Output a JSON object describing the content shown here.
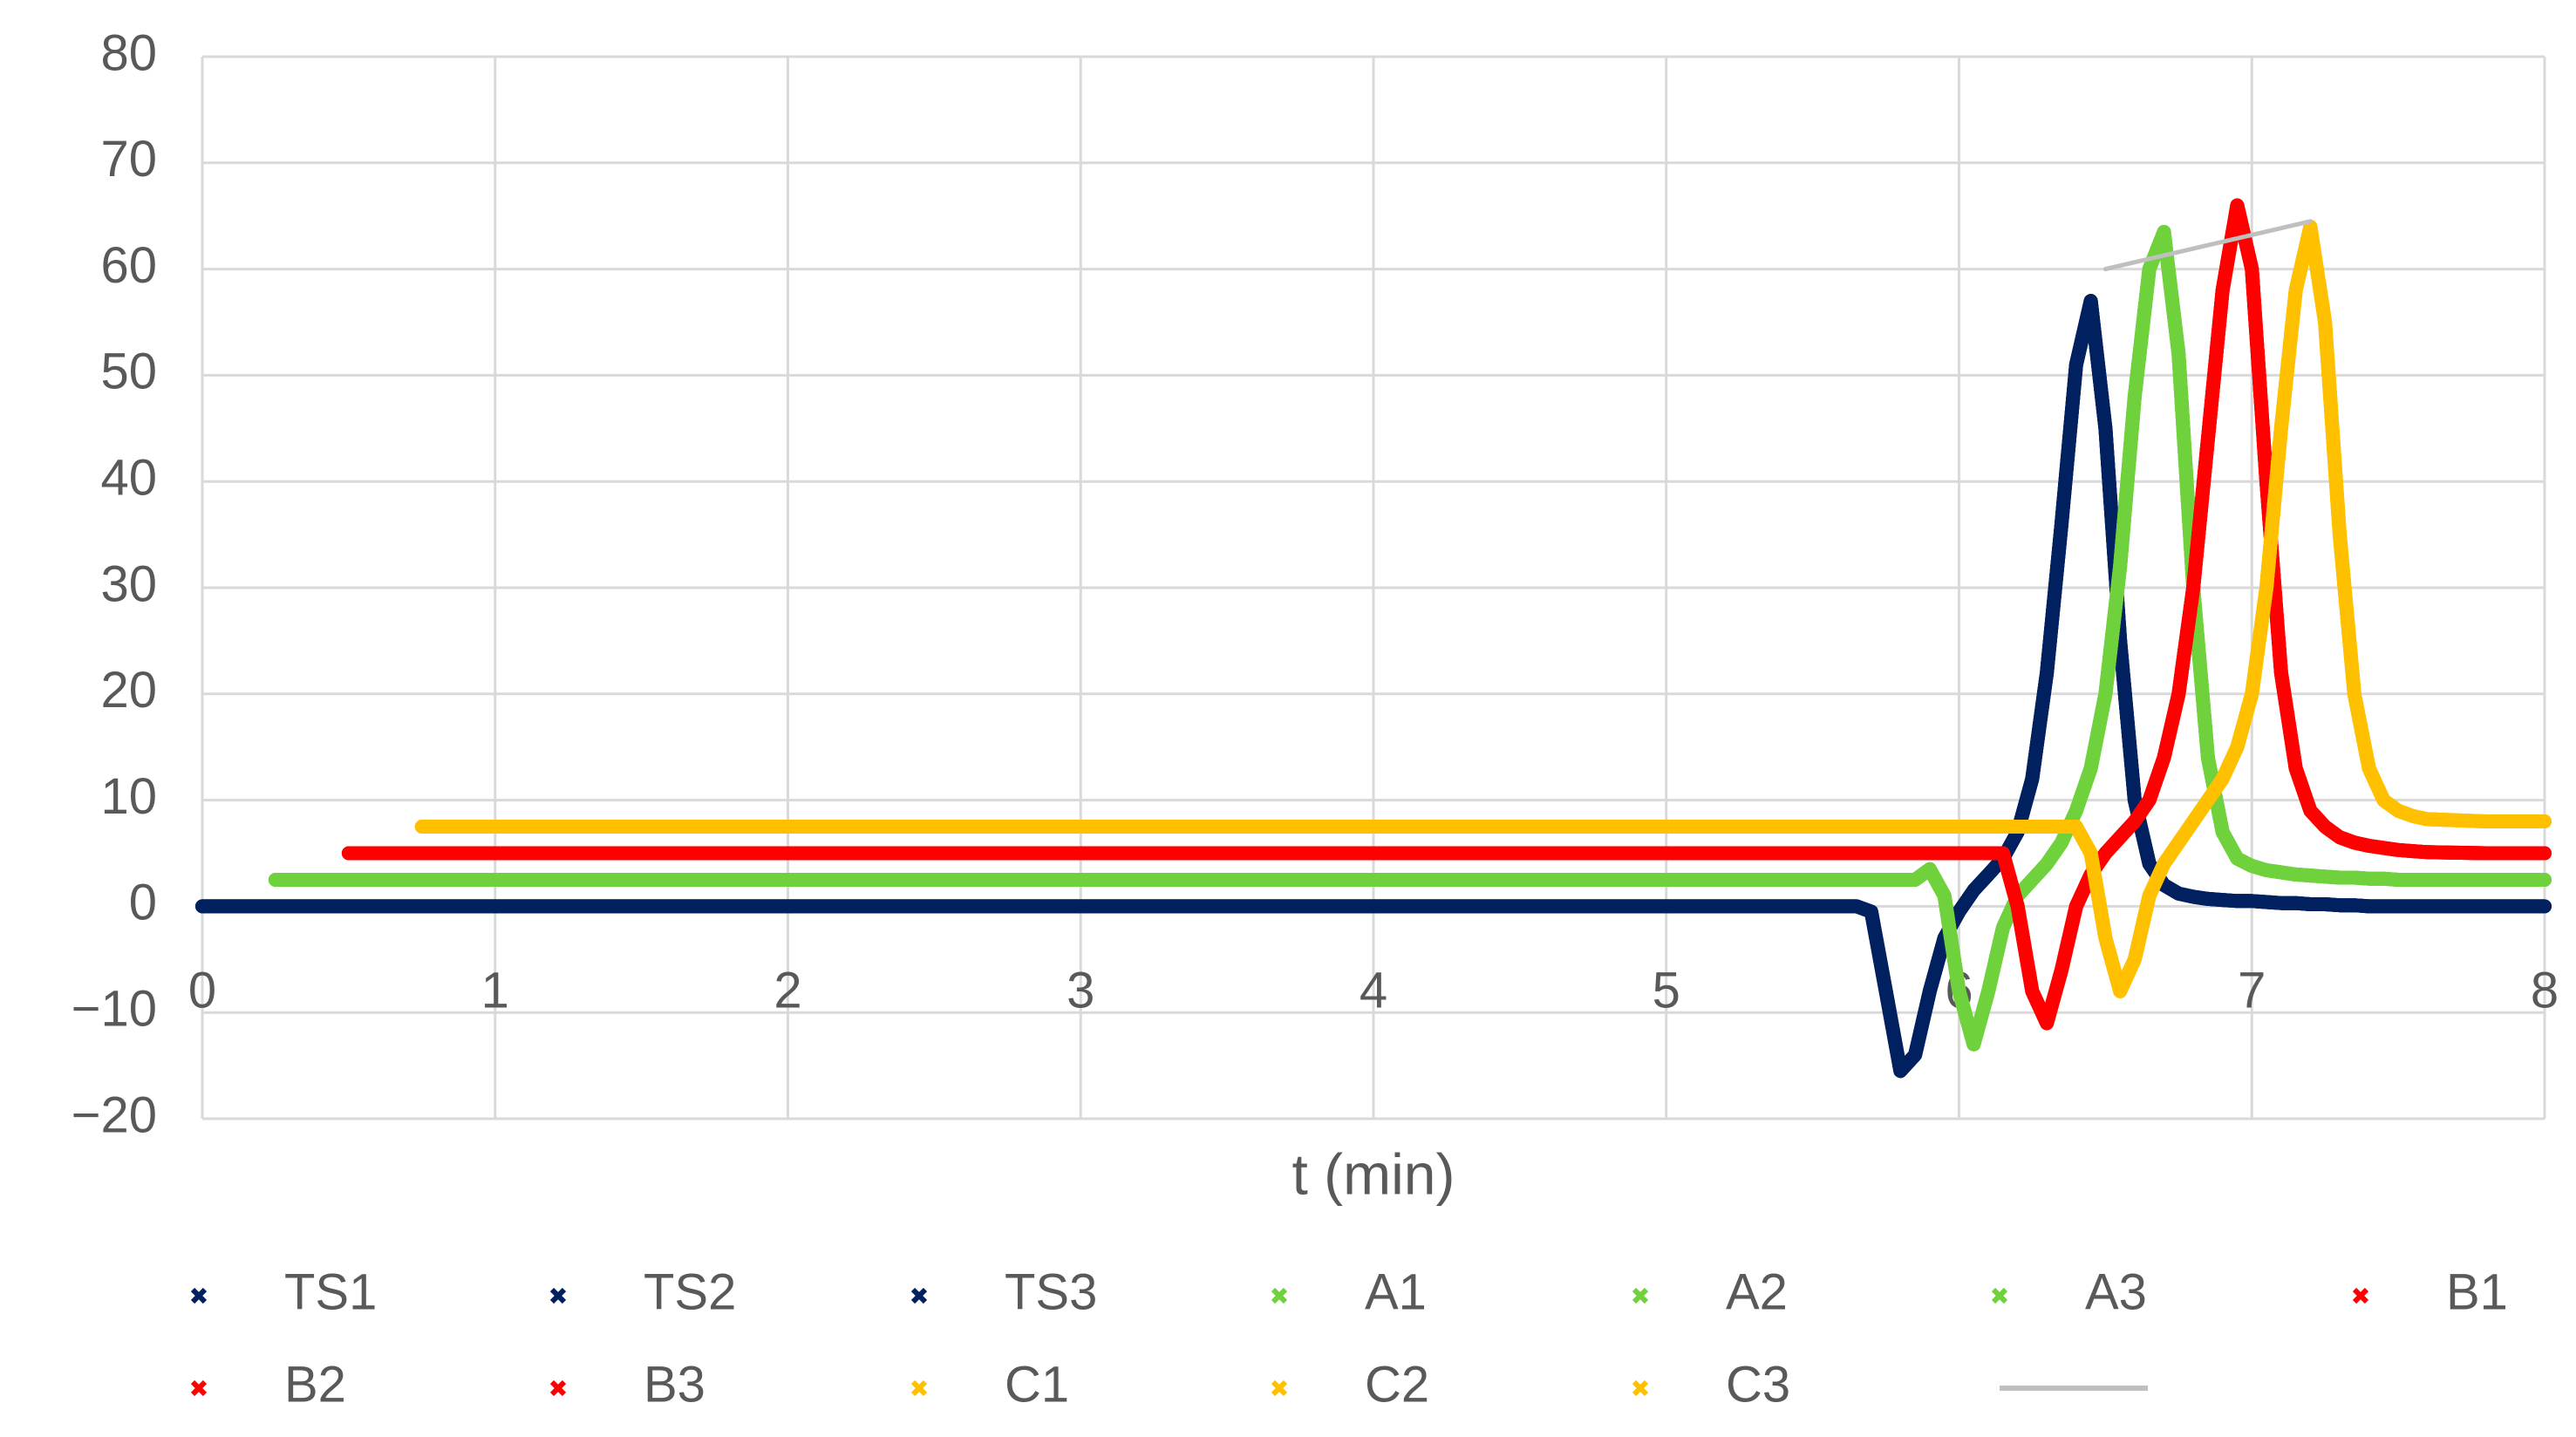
{
  "chart_data": {
    "type": "line",
    "xlabel": "t (min)",
    "x": [
      0,
      0.25,
      0.5,
      0.75,
      1,
      1.5,
      2,
      2.5,
      3,
      3.5,
      4,
      4.5,
      5,
      5.5,
      5.6,
      5.65,
      5.7,
      5.75,
      5.8,
      5.85,
      5.9,
      5.95,
      6,
      6.05,
      6.1,
      6.15,
      6.2,
      6.25,
      6.3,
      6.35,
      6.4,
      6.45,
      6.5,
      6.55,
      6.6,
      6.65,
      6.7,
      6.75,
      6.8,
      6.85,
      6.9,
      6.95,
      7,
      7.05,
      7.1,
      7.15,
      7.2,
      7.25,
      7.3,
      7.35,
      7.4,
      7.45,
      7.5,
      7.55,
      7.6,
      7.8,
      8
    ],
    "xlim": [
      0,
      8
    ],
    "xticks": [
      0,
      1,
      2,
      3,
      4,
      5,
      6,
      7,
      8
    ],
    "ylim": [
      -20,
      80
    ],
    "yticks": [
      {
        "value": -20,
        "label": "−20"
      },
      {
        "value": -10,
        "label": "−10"
      },
      0,
      10,
      20,
      30,
      40,
      50,
      60,
      70,
      80
    ],
    "grid": true,
    "legend": "bottom",
    "series": [
      {
        "name": "TS1",
        "color": "#002060",
        "values": [
          0,
          0,
          0,
          0,
          0,
          0,
          0,
          0,
          0,
          0,
          0,
          0,
          0,
          0,
          0,
          0,
          -0.5,
          -8,
          -15.5,
          -14,
          -8,
          -3,
          -0.5,
          1.5,
          3,
          4.5,
          7,
          12,
          22,
          36,
          51,
          57,
          45,
          25,
          10,
          4,
          2,
          1.2,
          0.9,
          0.7,
          0.6,
          0.5,
          0.5,
          0.4,
          0.3,
          0.3,
          0.2,
          0.2,
          0.1,
          0.1,
          0,
          0,
          0,
          0,
          0,
          0,
          0
        ]
      },
      {
        "name": "TS2",
        "color": "#002060",
        "values": [
          0,
          0,
          0,
          0,
          0,
          0,
          0,
          0,
          0,
          0,
          0,
          0,
          0,
          0,
          0,
          0,
          -0.5,
          -8,
          -15.5,
          -14,
          -8,
          -3,
          -0.5,
          1.5,
          3,
          4.5,
          7,
          12,
          22,
          36,
          51,
          57,
          45,
          25,
          10,
          4,
          2,
          1.2,
          0.9,
          0.7,
          0.6,
          0.5,
          0.5,
          0.4,
          0.3,
          0.3,
          0.2,
          0.2,
          0.1,
          0.1,
          0,
          0,
          0,
          0,
          0,
          0,
          0
        ]
      },
      {
        "name": "TS3",
        "color": "#002060",
        "values": [
          0,
          0,
          0,
          0,
          0,
          0,
          0,
          0,
          0,
          0,
          0,
          0,
          0,
          0,
          0,
          0,
          -0.5,
          -8,
          -15.5,
          -14,
          -8,
          -3,
          -0.5,
          1.5,
          3,
          4.5,
          7,
          12,
          22,
          36,
          51,
          57,
          45,
          25,
          10,
          4,
          2,
          1.2,
          0.9,
          0.7,
          0.6,
          0.5,
          0.5,
          0.4,
          0.3,
          0.3,
          0.2,
          0.2,
          0.1,
          0.1,
          0,
          0,
          0,
          0,
          0,
          0,
          0
        ]
      },
      {
        "name": "A1",
        "color": "#6fd13c",
        "values": [
          null,
          2.5,
          2.5,
          2.5,
          2.5,
          2.5,
          2.5,
          2.5,
          2.5,
          2.5,
          2.5,
          2.5,
          2.5,
          2.5,
          2.5,
          2.5,
          2.5,
          2.5,
          2.5,
          2.5,
          3.5,
          1,
          -8,
          -13,
          -8,
          -2,
          1,
          2.5,
          4,
          6,
          9,
          13,
          20,
          32,
          48,
          60,
          63.5,
          52,
          30,
          14,
          7,
          4.5,
          3.8,
          3.4,
          3.2,
          3,
          2.9,
          2.8,
          2.7,
          2.7,
          2.6,
          2.6,
          2.5,
          2.5,
          2.5,
          2.5,
          2.5
        ]
      },
      {
        "name": "A2",
        "color": "#6fd13c",
        "values": [
          null,
          2.5,
          2.5,
          2.5,
          2.5,
          2.5,
          2.5,
          2.5,
          2.5,
          2.5,
          2.5,
          2.5,
          2.5,
          2.5,
          2.5,
          2.5,
          2.5,
          2.5,
          2.5,
          2.5,
          3.5,
          1,
          -8,
          -13,
          -8,
          -2,
          1,
          2.5,
          4,
          6,
          9,
          13,
          20,
          32,
          48,
          60,
          63.5,
          52,
          30,
          14,
          7,
          4.5,
          3.8,
          3.4,
          3.2,
          3,
          2.9,
          2.8,
          2.7,
          2.7,
          2.6,
          2.6,
          2.5,
          2.5,
          2.5,
          2.5,
          2.5
        ]
      },
      {
        "name": "A3",
        "color": "#6fd13c",
        "values": [
          null,
          2.5,
          2.5,
          2.5,
          2.5,
          2.5,
          2.5,
          2.5,
          2.5,
          2.5,
          2.5,
          2.5,
          2.5,
          2.5,
          2.5,
          2.5,
          2.5,
          2.5,
          2.5,
          2.5,
          3.5,
          1,
          -8,
          -13,
          -8,
          -2,
          1,
          2.5,
          4,
          6,
          9,
          13,
          20,
          32,
          48,
          60,
          63.5,
          52,
          30,
          14,
          7,
          4.5,
          3.8,
          3.4,
          3.2,
          3,
          2.9,
          2.8,
          2.7,
          2.7,
          2.6,
          2.6,
          2.5,
          2.5,
          2.5,
          2.5,
          2.5
        ]
      },
      {
        "name": "B1",
        "color": "#ff0000",
        "values": [
          null,
          null,
          5,
          5,
          5,
          5,
          5,
          5,
          5,
          5,
          5,
          5,
          5,
          5,
          5,
          5,
          5,
          5,
          5,
          5,
          5,
          5,
          5,
          5,
          5,
          5,
          0,
          -8,
          -11,
          -6,
          0,
          3,
          5,
          6.5,
          8,
          10,
          14,
          20,
          30,
          44,
          58,
          66,
          60,
          40,
          22,
          13,
          9,
          7.5,
          6.5,
          6,
          5.7,
          5.5,
          5.3,
          5.2,
          5.1,
          5,
          5
        ]
      },
      {
        "name": "B2",
        "color": "#ff0000",
        "values": [
          null,
          null,
          5,
          5,
          5,
          5,
          5,
          5,
          5,
          5,
          5,
          5,
          5,
          5,
          5,
          5,
          5,
          5,
          5,
          5,
          5,
          5,
          5,
          5,
          5,
          5,
          0,
          -8,
          -11,
          -6,
          0,
          3,
          5,
          6.5,
          8,
          10,
          14,
          20,
          30,
          44,
          58,
          66,
          60,
          40,
          22,
          13,
          9,
          7.5,
          6.5,
          6,
          5.7,
          5.5,
          5.3,
          5.2,
          5.1,
          5,
          5
        ]
      },
      {
        "name": "B3",
        "color": "#ff0000",
        "values": [
          null,
          null,
          5,
          5,
          5,
          5,
          5,
          5,
          5,
          5,
          5,
          5,
          5,
          5,
          5,
          5,
          5,
          5,
          5,
          5,
          5,
          5,
          5,
          5,
          5,
          5,
          0,
          -8,
          -11,
          -6,
          0,
          3,
          5,
          6.5,
          8,
          10,
          14,
          20,
          30,
          44,
          58,
          66,
          60,
          40,
          22,
          13,
          9,
          7.5,
          6.5,
          6,
          5.7,
          5.5,
          5.3,
          5.2,
          5.1,
          5,
          5
        ]
      },
      {
        "name": "C1",
        "color": "#ffc000",
        "values": [
          null,
          null,
          null,
          7.5,
          7.5,
          7.5,
          7.5,
          7.5,
          7.5,
          7.5,
          7.5,
          7.5,
          7.5,
          7.5,
          7.5,
          7.5,
          7.5,
          7.5,
          7.5,
          7.5,
          7.5,
          7.5,
          7.5,
          7.5,
          7.5,
          7.5,
          7.5,
          7.5,
          7.5,
          7.5,
          7.5,
          5,
          -3,
          -8,
          -5,
          1,
          4,
          6,
          8,
          10,
          12,
          15,
          20,
          30,
          45,
          58,
          64,
          55,
          35,
          20,
          13,
          10,
          9,
          8.5,
          8.2,
          8,
          8
        ]
      },
      {
        "name": "C2",
        "color": "#ffc000",
        "values": [
          null,
          null,
          null,
          7.5,
          7.5,
          7.5,
          7.5,
          7.5,
          7.5,
          7.5,
          7.5,
          7.5,
          7.5,
          7.5,
          7.5,
          7.5,
          7.5,
          7.5,
          7.5,
          7.5,
          7.5,
          7.5,
          7.5,
          7.5,
          7.5,
          7.5,
          7.5,
          7.5,
          7.5,
          7.5,
          7.5,
          5,
          -3,
          -8,
          -5,
          1,
          4,
          6,
          8,
          10,
          12,
          15,
          20,
          30,
          45,
          58,
          64,
          55,
          35,
          20,
          13,
          10,
          9,
          8.5,
          8.2,
          8,
          8
        ]
      },
      {
        "name": "C3",
        "color": "#ffc000",
        "values": [
          null,
          null,
          null,
          7.5,
          7.5,
          7.5,
          7.5,
          7.5,
          7.5,
          7.5,
          7.5,
          7.5,
          7.5,
          7.5,
          7.5,
          7.5,
          7.5,
          7.5,
          7.5,
          7.5,
          7.5,
          7.5,
          7.5,
          7.5,
          7.5,
          7.5,
          7.5,
          7.5,
          7.5,
          7.5,
          7.5,
          5,
          -3,
          -8,
          -5,
          1,
          4,
          6,
          8,
          10,
          12,
          15,
          20,
          30,
          45,
          58,
          64,
          55,
          35,
          20,
          13,
          10,
          9,
          8.5,
          8.2,
          8,
          8
        ]
      },
      {
        "color": "#bfbfbf",
        "x": [
          6.5,
          7.2
        ],
        "values": [
          60,
          64.5
        ]
      }
    ]
  }
}
